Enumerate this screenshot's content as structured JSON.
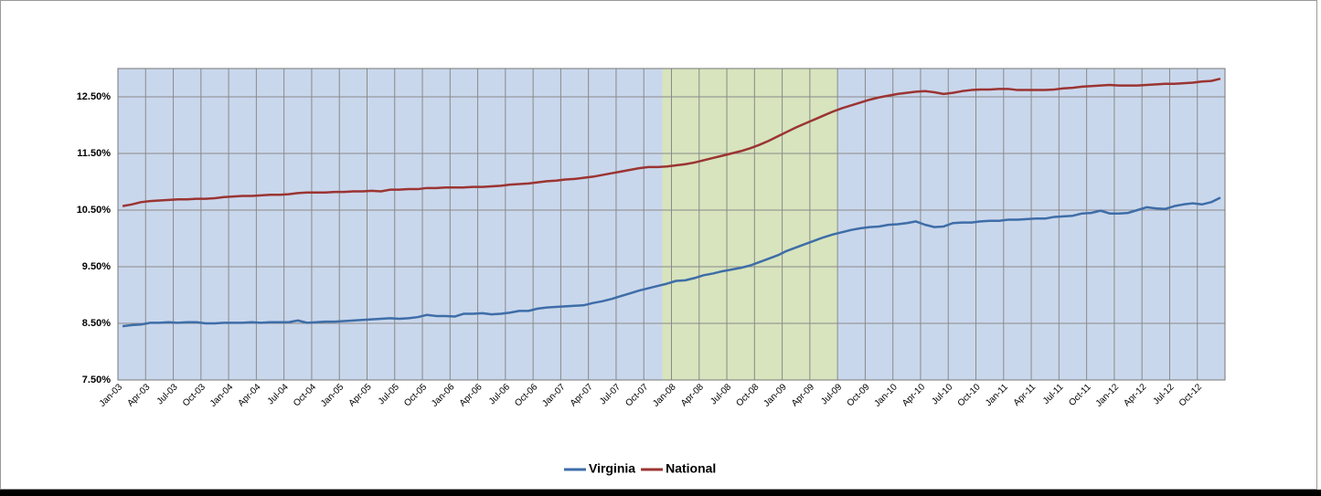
{
  "chart_data": {
    "type": "line",
    "categories": [
      "Jan-03",
      null,
      null,
      "Apr-03",
      null,
      null,
      "Jul-03",
      null,
      null,
      "Oct-03",
      null,
      null,
      "Jan-04",
      null,
      null,
      "Apr-04",
      null,
      null,
      "Jul-04",
      null,
      null,
      "Oct-04",
      null,
      null,
      "Jan-05",
      null,
      null,
      "Apr-05",
      null,
      null,
      "Jul-05",
      null,
      null,
      "Oct-05",
      null,
      null,
      "Jan-06",
      null,
      null,
      "Apr-06",
      null,
      null,
      "Jul-06",
      null,
      null,
      "Oct-06",
      null,
      null,
      "Jan-07",
      null,
      null,
      "Apr-07",
      null,
      null,
      "Jul-07",
      null,
      null,
      "Oct-07",
      null,
      null,
      "Jan-08",
      null,
      null,
      "Apr-08",
      null,
      null,
      "Jul-08",
      null,
      null,
      "Oct-08",
      null,
      null,
      "Jan-09",
      null,
      null,
      "Apr-09",
      null,
      null,
      "Jul-09",
      null,
      null,
      "Oct-09",
      null,
      null,
      "Jan-10",
      null,
      null,
      "Apr-10",
      null,
      null,
      "Jul-10",
      null,
      null,
      "Oct-10",
      null,
      null,
      "Jan-11",
      null,
      null,
      "Apr-11",
      null,
      null,
      "Jul-11",
      null,
      null,
      "Oct-11",
      null,
      null,
      "Jan-12",
      null,
      null,
      "Apr-12",
      null,
      null,
      "Jul-12",
      null,
      null,
      "Oct-12",
      null,
      null
    ],
    "series": [
      {
        "name": "Virginia",
        "color": "#3e6da8",
        "values": [
          8.45,
          8.47,
          8.48,
          8.51,
          8.51,
          8.52,
          8.51,
          8.52,
          8.52,
          8.5,
          8.5,
          8.51,
          8.51,
          8.51,
          8.52,
          8.51,
          8.52,
          8.52,
          8.52,
          8.55,
          8.51,
          8.52,
          8.53,
          8.53,
          8.54,
          8.55,
          8.56,
          8.57,
          8.58,
          8.59,
          8.58,
          8.59,
          8.61,
          8.65,
          8.63,
          8.63,
          8.62,
          8.67,
          8.67,
          8.68,
          8.66,
          8.67,
          8.69,
          8.72,
          8.72,
          8.76,
          8.78,
          8.79,
          8.8,
          8.81,
          8.82,
          8.86,
          8.89,
          8.93,
          8.98,
          9.03,
          9.08,
          9.12,
          9.16,
          9.2,
          9.25,
          9.26,
          9.3,
          9.35,
          9.38,
          9.42,
          9.45,
          9.48,
          9.52,
          9.58,
          9.64,
          9.7,
          9.78,
          9.84,
          9.9,
          9.96,
          10.02,
          10.07,
          10.11,
          10.15,
          10.18,
          10.2,
          10.21,
          10.24,
          10.25,
          10.27,
          10.3,
          10.24,
          10.2,
          10.21,
          10.27,
          10.28,
          10.28,
          10.3,
          10.31,
          10.31,
          10.33,
          10.33,
          10.34,
          10.35,
          10.35,
          10.38,
          10.39,
          10.4,
          10.44,
          10.45,
          10.49,
          10.44,
          10.44,
          10.45,
          10.5,
          10.55,
          10.53,
          10.52,
          10.57,
          10.6,
          10.62,
          10.6,
          10.64,
          10.72
        ]
      },
      {
        "name": "National",
        "color": "#9b3432",
        "values": [
          10.57,
          10.6,
          10.64,
          10.66,
          10.67,
          10.68,
          10.69,
          10.69,
          10.7,
          10.7,
          10.71,
          10.73,
          10.74,
          10.75,
          10.75,
          10.76,
          10.77,
          10.77,
          10.78,
          10.8,
          10.81,
          10.81,
          10.81,
          10.82,
          10.82,
          10.83,
          10.83,
          10.84,
          10.83,
          10.86,
          10.86,
          10.87,
          10.87,
          10.89,
          10.89,
          10.9,
          10.9,
          10.9,
          10.91,
          10.91,
          10.92,
          10.93,
          10.95,
          10.96,
          10.97,
          10.99,
          11.01,
          11.02,
          11.04,
          11.05,
          11.07,
          11.09,
          11.12,
          11.15,
          11.18,
          11.21,
          11.24,
          11.26,
          11.26,
          11.27,
          11.29,
          11.31,
          11.34,
          11.38,
          11.42,
          11.46,
          11.5,
          11.54,
          11.59,
          11.65,
          11.72,
          11.8,
          11.88,
          11.96,
          12.03,
          12.1,
          12.17,
          12.24,
          12.3,
          12.35,
          12.4,
          12.45,
          12.49,
          12.52,
          12.55,
          12.57,
          12.59,
          12.6,
          12.58,
          12.55,
          12.57,
          12.6,
          12.62,
          12.63,
          12.63,
          12.64,
          12.64,
          12.62,
          12.62,
          12.62,
          12.62,
          12.63,
          12.65,
          12.66,
          12.68,
          12.69,
          12.7,
          12.71,
          12.7,
          12.7,
          12.7,
          12.71,
          12.72,
          12.73,
          12.73,
          12.74,
          12.75,
          12.77,
          12.78,
          12.82
        ]
      }
    ],
    "ylim": [
      7.5,
      13.0
    ],
    "yticks": [
      {
        "value": 7.5,
        "label": "7.50%"
      },
      {
        "value": 8.5,
        "label": "8.50%"
      },
      {
        "value": 9.5,
        "label": "9.50%"
      },
      {
        "value": 10.5,
        "label": "10.50%"
      },
      {
        "value": 11.5,
        "label": "11.50%"
      },
      {
        "value": 12.5,
        "label": "12.50%"
      }
    ],
    "grid": true,
    "plot_color": "#c9d7ec",
    "highlight": {
      "start": 59,
      "end": 77,
      "color": "#d7e4bd"
    },
    "legend": "bottom"
  }
}
